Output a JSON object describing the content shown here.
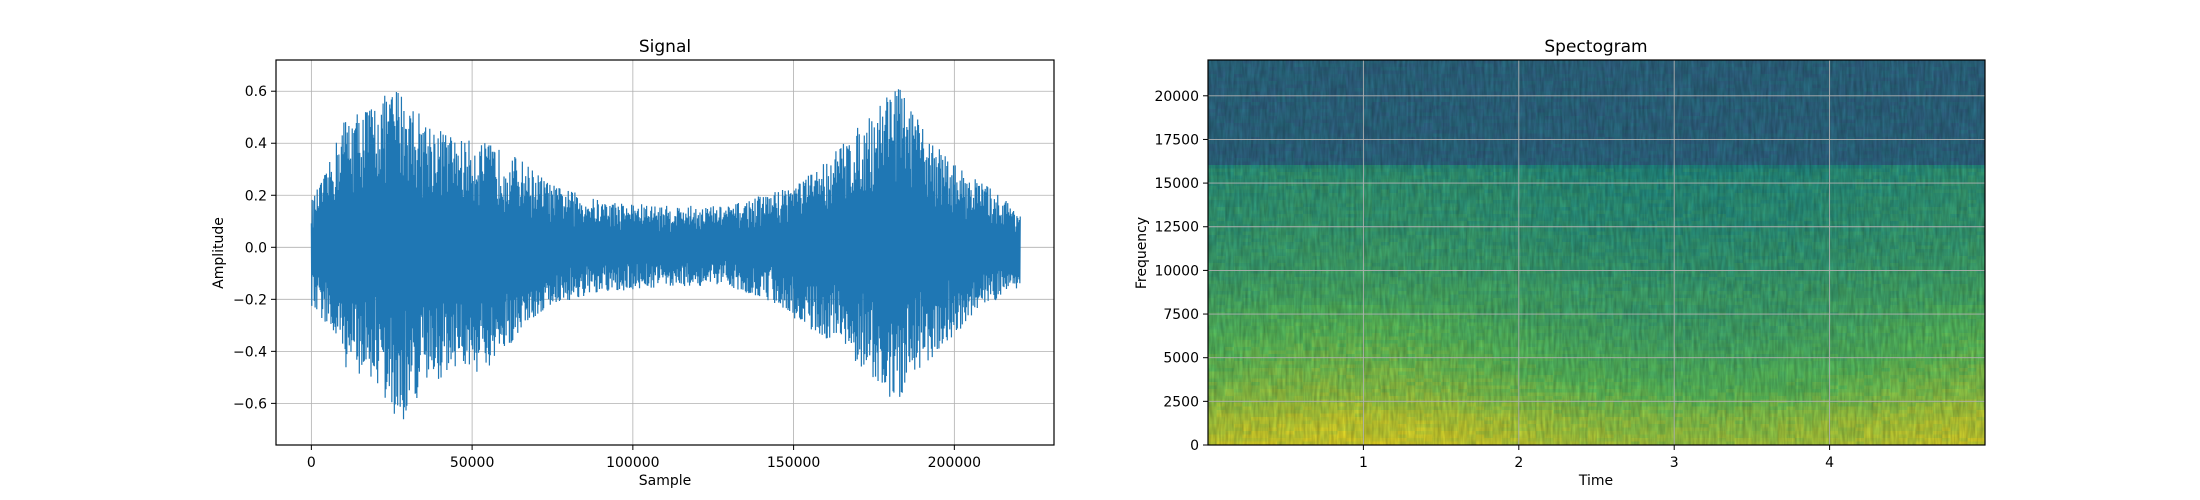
{
  "chart_data": [
    {
      "type": "line",
      "title": "Signal",
      "xlabel": "Sample",
      "ylabel": "Amplitude",
      "xlim": [
        -11000,
        231000
      ],
      "ylim": [
        -0.76,
        0.72
      ],
      "xticks": [
        0,
        50000,
        100000,
        150000,
        200000
      ],
      "xtick_labels": [
        "0",
        "50000",
        "100000",
        "150000",
        "200000"
      ],
      "yticks": [
        -0.6,
        -0.4,
        -0.2,
        0.0,
        0.2,
        0.4,
        0.6
      ],
      "ytick_labels": [
        "−0.6",
        "−0.4",
        "−0.2",
        "0.0",
        "0.2",
        "0.4",
        "0.6"
      ],
      "grid": true,
      "color": "#1f77b4",
      "sample_count": 220500,
      "envelope": {
        "x": [
          0,
          5000,
          10000,
          20000,
          27000,
          35000,
          45000,
          55000,
          65000,
          75000,
          90000,
          110000,
          130000,
          145000,
          155000,
          165000,
          175000,
          181000,
          190000,
          200000,
          210000,
          220500
        ],
        "upper": [
          0.18,
          0.3,
          0.5,
          0.56,
          0.62,
          0.5,
          0.42,
          0.4,
          0.34,
          0.24,
          0.18,
          0.16,
          0.16,
          0.22,
          0.28,
          0.4,
          0.52,
          0.66,
          0.46,
          0.32,
          0.24,
          0.14
        ],
        "lower": [
          -0.24,
          -0.3,
          -0.46,
          -0.52,
          -0.7,
          -0.55,
          -0.46,
          -0.5,
          -0.32,
          -0.22,
          -0.18,
          -0.15,
          -0.15,
          -0.22,
          -0.32,
          -0.38,
          -0.52,
          -0.62,
          -0.46,
          -0.34,
          -0.22,
          -0.16
        ]
      }
    },
    {
      "type": "heatmap",
      "title": "Spectogram",
      "xlabel": "Time",
      "ylabel": "Frequency",
      "xlim": [
        0,
        5.0
      ],
      "ylim": [
        0,
        22050
      ],
      "xticks": [
        1,
        2,
        3,
        4
      ],
      "xtick_labels": [
        "1",
        "2",
        "3",
        "4"
      ],
      "yticks": [
        0,
        2500,
        5000,
        7500,
        10000,
        12500,
        15000,
        17500,
        20000
      ],
      "ytick_labels": [
        "0",
        "2500",
        "5000",
        "7500",
        "10000",
        "12500",
        "15000",
        "17500",
        "20000"
      ],
      "grid": true,
      "colormap": "viridis",
      "cutoff_frequency": 16000,
      "intensity_profile": {
        "frequency": [
          0,
          1500,
          3000,
          5000,
          7500,
          10000,
          12500,
          15000,
          15900,
          16100,
          22050
        ],
        "level": [
          0.92,
          0.88,
          0.8,
          0.74,
          0.68,
          0.62,
          0.58,
          0.56,
          0.55,
          0.36,
          0.36
        ]
      }
    }
  ]
}
